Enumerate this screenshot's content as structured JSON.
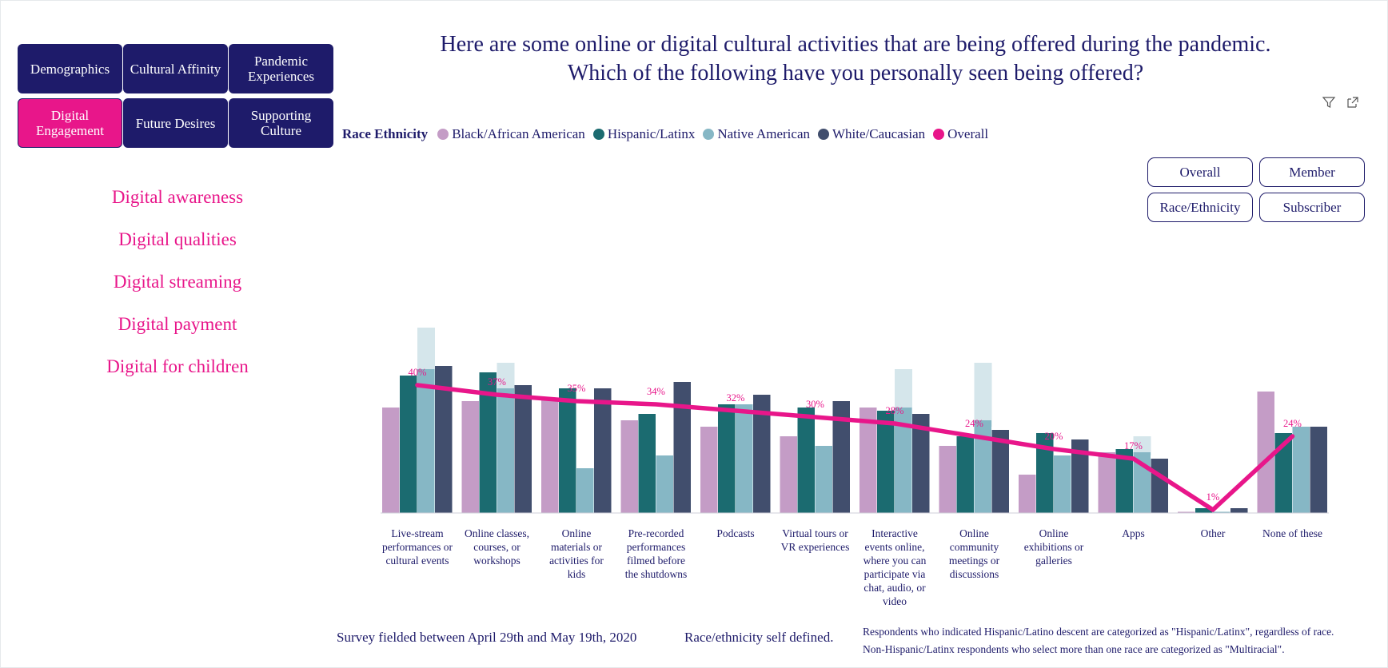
{
  "nav": {
    "items": [
      {
        "label": "Demographics",
        "active": false
      },
      {
        "label": "Cultural Affinity",
        "active": false
      },
      {
        "label": "Pandemic Experiences",
        "active": false
      },
      {
        "label": "Digital Engagement",
        "active": true
      },
      {
        "label": "Future Desires",
        "active": false
      },
      {
        "label": "Supporting Culture",
        "active": false
      }
    ]
  },
  "side_links": [
    "Digital awareness",
    "Digital qualities",
    "Digital streaming",
    "Digital payment",
    "Digital for children"
  ],
  "title": {
    "line1": "Here are some online or digital cultural activities that are being offered during the pandemic.",
    "line2": "Which of the following have you personally seen being offered?"
  },
  "toolbar": {
    "icons": [
      "filter-icon",
      "expand-icon"
    ]
  },
  "legend": {
    "title": "Race Ethnicity",
    "items": [
      {
        "name": "Black/African American",
        "color": "#c49cc6"
      },
      {
        "name": "Hispanic/Latinx",
        "color": "#1b6b70"
      },
      {
        "name": "Native American",
        "color": "#86b7c5"
      },
      {
        "name": "White/Caucasian",
        "color": "#414e6d"
      },
      {
        "name": "Overall",
        "color": "#e8168a"
      }
    ]
  },
  "toggles": {
    "overall": "Overall",
    "member": "Member",
    "race_ethnicity": "Race/Ethnicity",
    "subscriber": "Subscriber"
  },
  "chart_data": {
    "type": "bar",
    "categories": [
      [
        "Live-stream",
        "performances or",
        "cultural events"
      ],
      [
        "Online classes,",
        "courses, or",
        "workshops"
      ],
      [
        "Online",
        "materials or",
        "activities for",
        "kids"
      ],
      [
        "Pre-recorded",
        "performances",
        "filmed before",
        "the shutdowns"
      ],
      [
        "Podcasts"
      ],
      [
        "Virtual tours or",
        "VR experiences"
      ],
      [
        "Interactive",
        "events online,",
        "where you can",
        "participate via",
        "chat, audio, or",
        "video"
      ],
      [
        "Online",
        "community",
        "meetings or",
        "discussions"
      ],
      [
        "Online",
        "exhibitions or",
        "galleries"
      ],
      [
        "Apps"
      ],
      [
        "Other"
      ],
      [
        "None of these"
      ]
    ],
    "series": [
      {
        "name": "Black/African American",
        "color": "#c49cc6",
        "values": [
          33,
          35,
          36,
          29,
          27,
          24,
          33,
          21,
          12,
          19,
          0.3,
          38
        ]
      },
      {
        "name": "Hispanic/Latinx",
        "color": "#1b6b70",
        "values": [
          43,
          44,
          39,
          31,
          34,
          33,
          32,
          24,
          25,
          20,
          1.5,
          25
        ]
      },
      {
        "name": "Native American",
        "color": "#86b7c5",
        "values": [
          45,
          39,
          14,
          18,
          34,
          21,
          33,
          29,
          18,
          19,
          0.3,
          27
        ]
      },
      {
        "name": "White/Caucasian",
        "color": "#414e6d",
        "values": [
          46,
          40,
          39,
          41,
          37,
          35,
          31,
          26,
          23,
          17,
          1.5,
          27
        ]
      }
    ],
    "range_boxes": [
      {
        "category_index": 0,
        "low": 40,
        "high": 58
      },
      {
        "category_index": 1,
        "low": 36,
        "high": 47
      },
      {
        "category_index": 6,
        "low": 28,
        "high": 45
      },
      {
        "category_index": 7,
        "low": 27,
        "high": 47
      },
      {
        "category_index": 9,
        "low": 18,
        "high": 24
      }
    ],
    "overall": {
      "name": "Overall",
      "color": "#e8168a",
      "values": [
        40,
        37,
        35,
        34,
        32,
        30,
        28,
        24,
        20,
        17,
        1,
        24
      ],
      "labels": [
        "40%",
        "37%",
        "35%",
        "34%",
        "32%",
        "30%",
        "28%",
        "24%",
        "20%",
        "17%",
        "1%",
        "24%"
      ]
    },
    "ylim": [
      0,
      60
    ]
  },
  "footer": {
    "survey": "Survey fielded between April 29th and May 19th, 2020",
    "race_note": "Race/ethnicity self defined.",
    "note1": "Respondents who indicated Hispanic/Latino descent are categorized as \"Hispanic/Latinx\", regardless of race.",
    "note2": "Non-Hispanic/Latinx respondents who select more than one race are categorized as \"Multiracial\"."
  }
}
